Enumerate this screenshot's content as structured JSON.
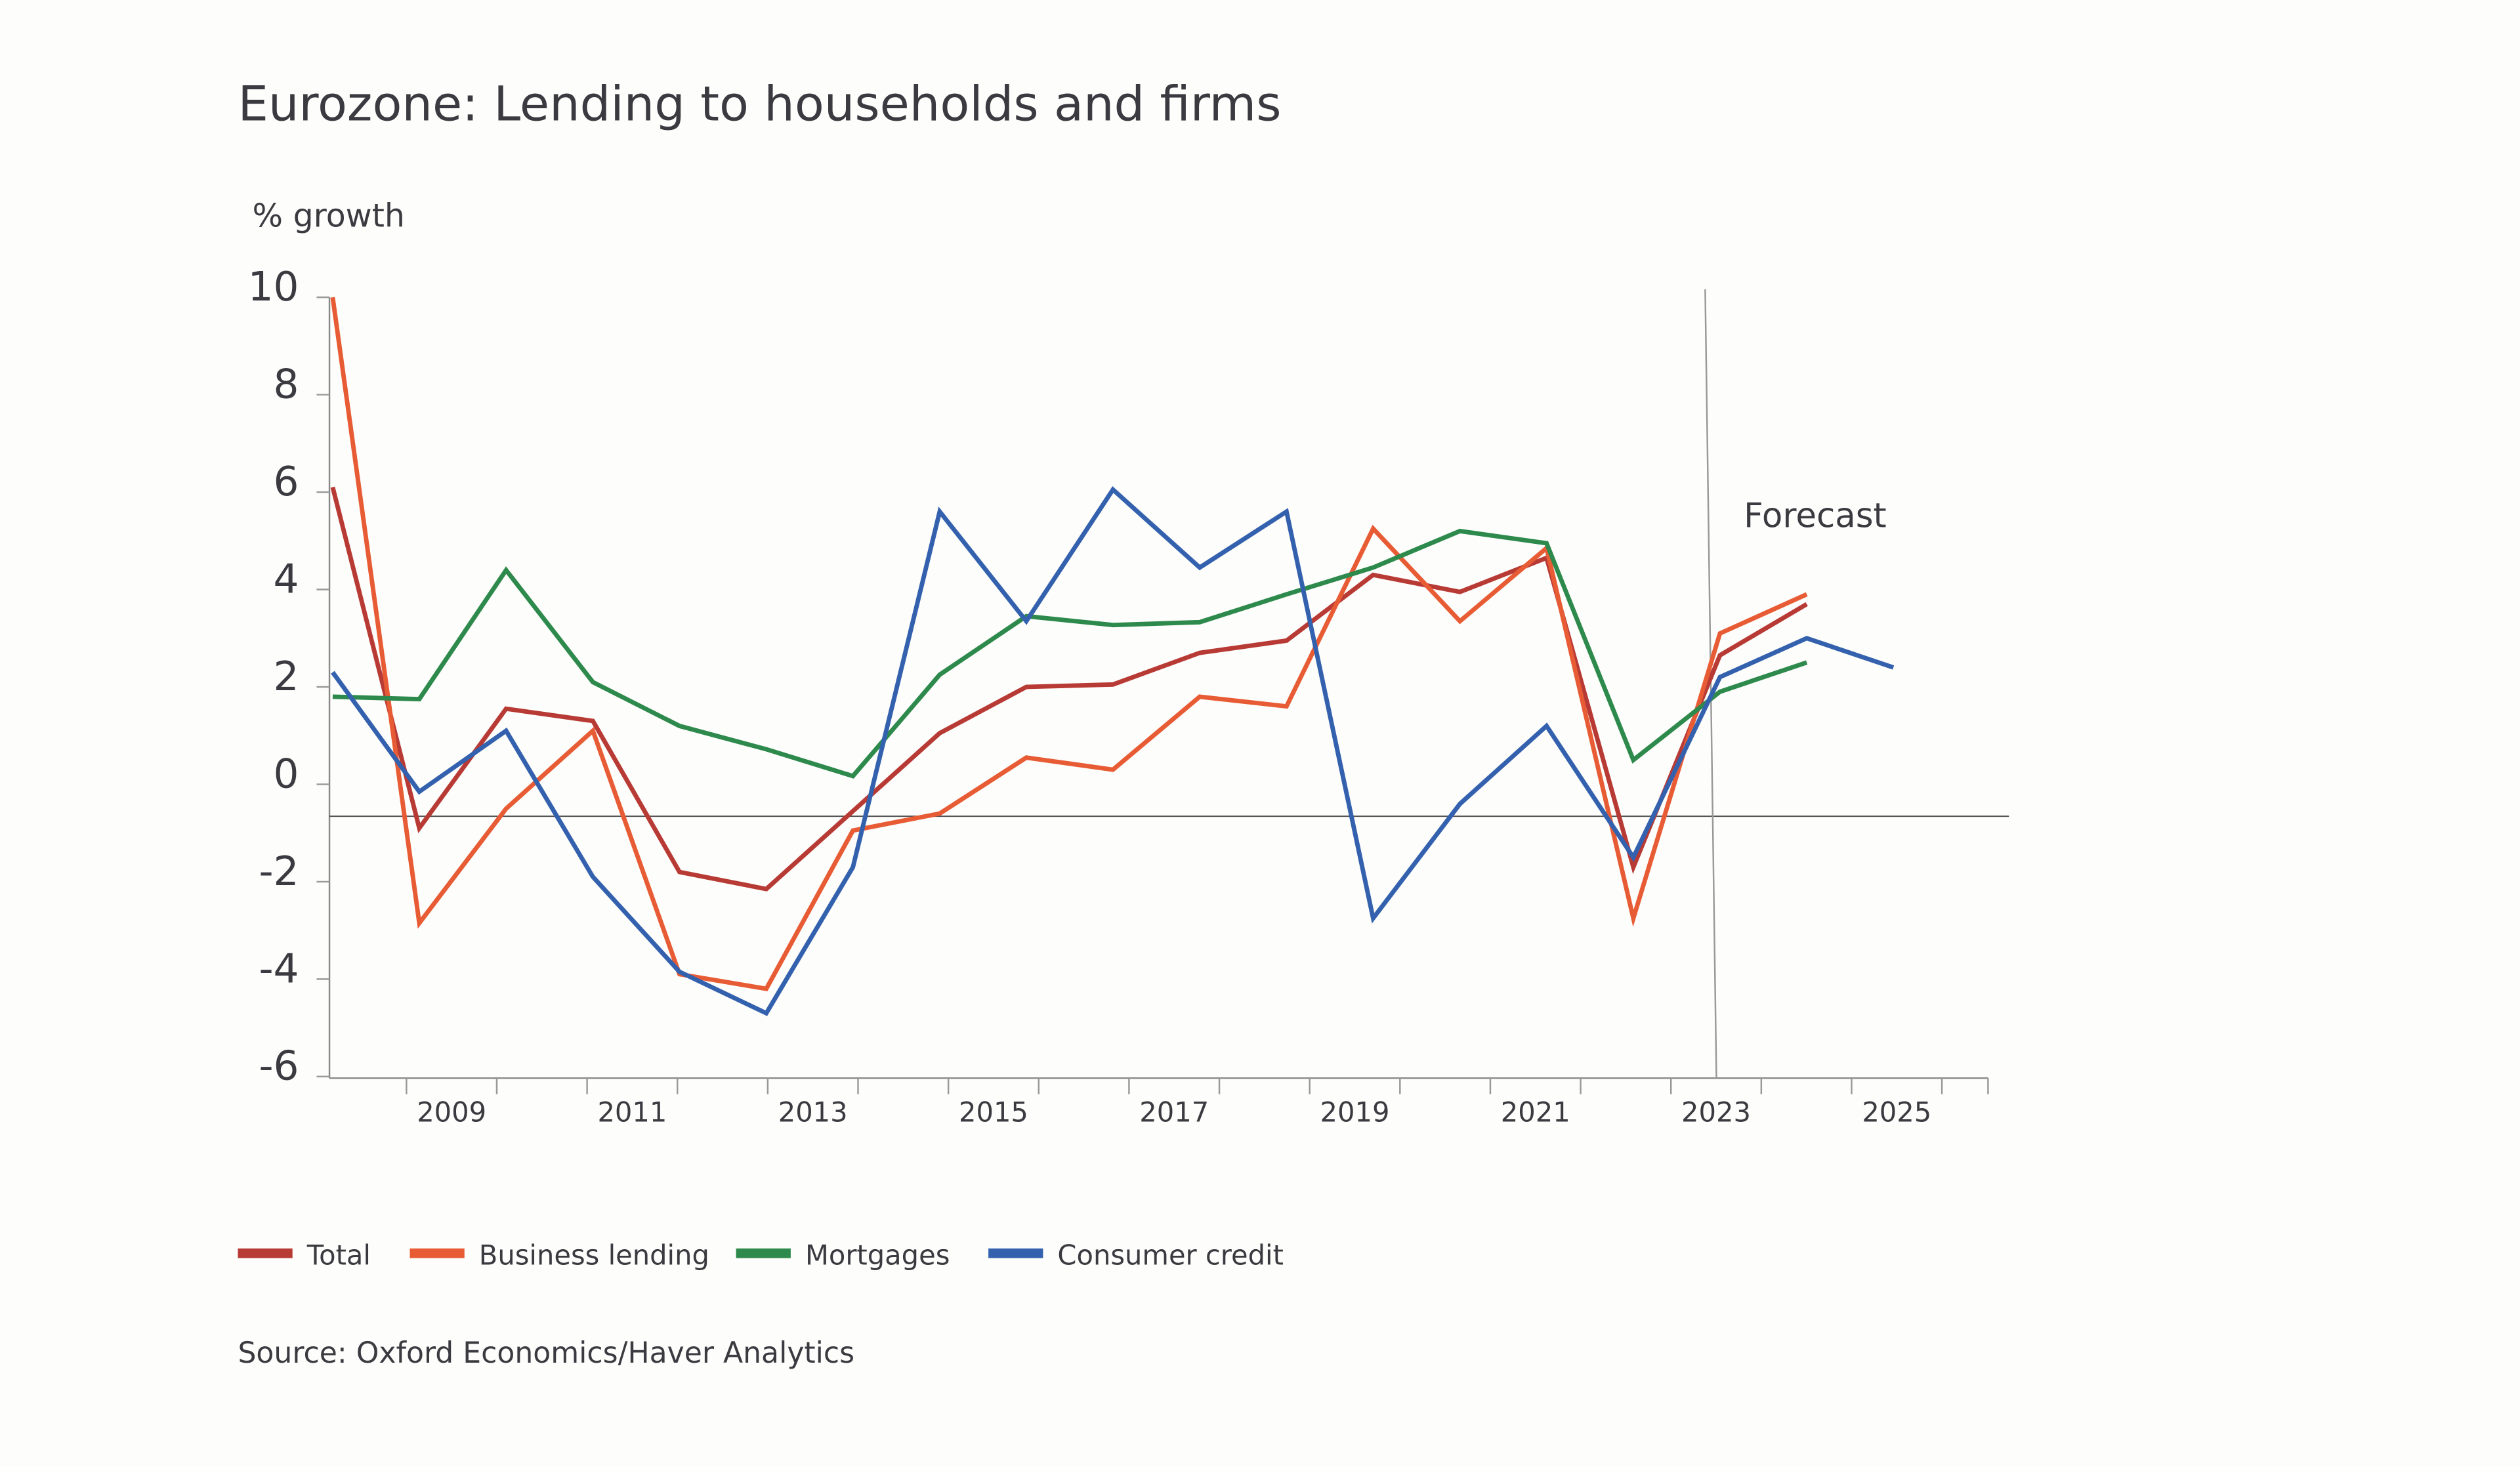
{
  "chart_data": {
    "type": "line",
    "title": "Eurozone: Lending to households and firms",
    "ylabel": "% growth",
    "xlabel": "",
    "ylim": [
      -6,
      10
    ],
    "yticks": [
      "10",
      "8",
      "6",
      "4",
      "2",
      "0",
      "-2",
      "-4",
      "-6"
    ],
    "xticks": [
      "2009",
      "2011",
      "2013",
      "2015",
      "2017",
      "2019",
      "2021",
      "2023",
      "2025"
    ],
    "x": [
      2008,
      2009,
      2010,
      2011,
      2012,
      2013,
      2014,
      2015,
      2016,
      2017,
      2018,
      2019,
      2020,
      2021,
      2022,
      2023,
      2024,
      2025,
      2026
    ],
    "annotation": "Forecast",
    "forecast_start": 2023,
    "grid": false,
    "legend_position": "bottom-left",
    "series": [
      {
        "name": "Total",
        "color": "#b83a35",
        "values": [
          6.1,
          -0.9,
          1.55,
          1.3,
          -1.8,
          -2.15,
          -0.55,
          1.05,
          2.0,
          2.05,
          2.7,
          2.95,
          4.3,
          3.95,
          4.65,
          -1.7,
          2.65,
          3.7,
          null
        ]
      },
      {
        "name": "Business lending",
        "color": "#e85c35",
        "values": [
          10.0,
          -2.85,
          -0.5,
          1.1,
          -3.9,
          -4.2,
          -0.95,
          -0.6,
          0.55,
          0.3,
          1.8,
          1.6,
          5.25,
          3.35,
          4.85,
          -2.75,
          3.1,
          3.9,
          null
        ]
      },
      {
        "name": "Mortgages",
        "color": "#2e8a4c",
        "values": [
          1.8,
          1.75,
          4.4,
          2.1,
          1.2,
          0.72,
          0.17,
          2.25,
          3.45,
          3.27,
          3.33,
          3.9,
          4.45,
          5.2,
          4.95,
          0.5,
          1.9,
          2.5,
          null
        ]
      },
      {
        "name": "Consumer credit",
        "color": "#3461ae",
        "values": [
          2.3,
          -0.15,
          1.1,
          -1.9,
          -3.85,
          -4.7,
          -1.7,
          5.6,
          3.35,
          6.05,
          4.45,
          5.6,
          -2.75,
          -0.4,
          1.2,
          -1.5,
          2.2,
          3.0,
          2.4
        ]
      }
    ]
  },
  "source": "Source: Oxford Economics/Haver Analytics"
}
